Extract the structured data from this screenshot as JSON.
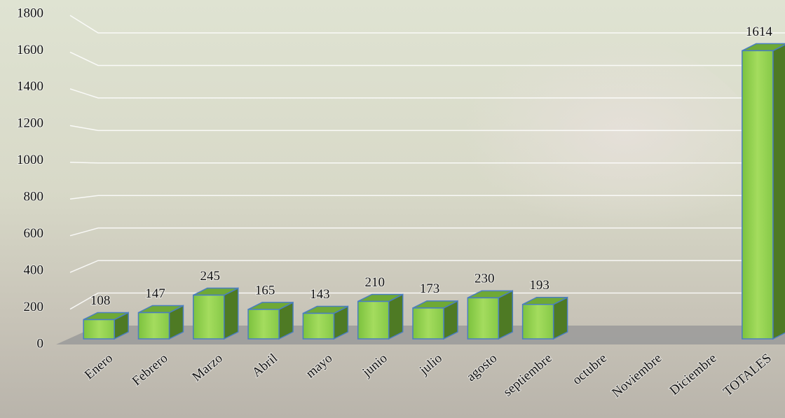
{
  "chart_data": {
    "type": "bar3d",
    "categories": [
      "Enero",
      "Febrero",
      "Marzo",
      "Abril",
      "mayo",
      "junio",
      "julio",
      "agosto",
      "septiembre",
      "octubre",
      "Noviembre",
      "Diciembre",
      "TOTALES"
    ],
    "values": [
      108,
      147,
      245,
      165,
      143,
      210,
      173,
      230,
      193,
      null,
      null,
      null,
      1614
    ],
    "color": "#92d050",
    "ylim": [
      0,
      1800
    ],
    "yticks": [
      0,
      200,
      400,
      600,
      800,
      1000,
      1200,
      1400,
      1600,
      1800
    ],
    "grid": true
  }
}
